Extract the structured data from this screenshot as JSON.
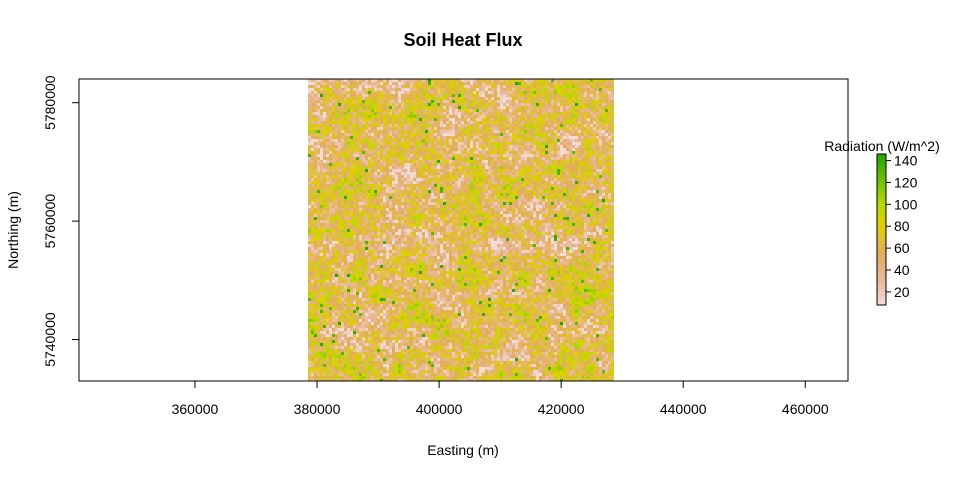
{
  "chart_data": {
    "type": "heatmap",
    "title": "Soil Heat Flux",
    "xlabel": "Easting (m)",
    "ylabel": "Northing (m)",
    "xlim": [
      341000,
      467000
    ],
    "ylim": [
      5733000,
      5784000
    ],
    "raster_extent": {
      "x": [
        378500,
        428500
      ],
      "y": [
        5733000,
        5784000
      ]
    },
    "x_ticks": [
      360000,
      380000,
      400000,
      420000,
      440000,
      460000
    ],
    "x_tick_labels": [
      "360000",
      "380000",
      "400000",
      "420000",
      "440000",
      "460000"
    ],
    "y_ticks": [
      5740000,
      5760000,
      5780000
    ],
    "y_tick_labels": [
      "5740000",
      "5760000",
      "5780000"
    ],
    "grid": false,
    "legend": {
      "title": "Radiation (W/m^2)",
      "placement": "right",
      "range": [
        8,
        146
      ],
      "ticks": [
        20,
        40,
        60,
        80,
        100,
        120,
        140
      ],
      "tick_labels": [
        "20",
        "40",
        "60",
        "80",
        "100",
        "120",
        "140"
      ],
      "color_stops": [
        {
          "value": 8,
          "color": "#f2dcd7"
        },
        {
          "value": 30,
          "color": "#e9b89b"
        },
        {
          "value": 55,
          "color": "#e1ad5a"
        },
        {
          "value": 80,
          "color": "#e0d000"
        },
        {
          "value": 100,
          "color": "#b7d900"
        },
        {
          "value": 120,
          "color": "#6dc400"
        },
        {
          "value": 146,
          "color": "#1fa600"
        }
      ]
    },
    "value_distribution": {
      "min": 8,
      "max": 146,
      "typical": [
        30,
        90
      ]
    }
  }
}
